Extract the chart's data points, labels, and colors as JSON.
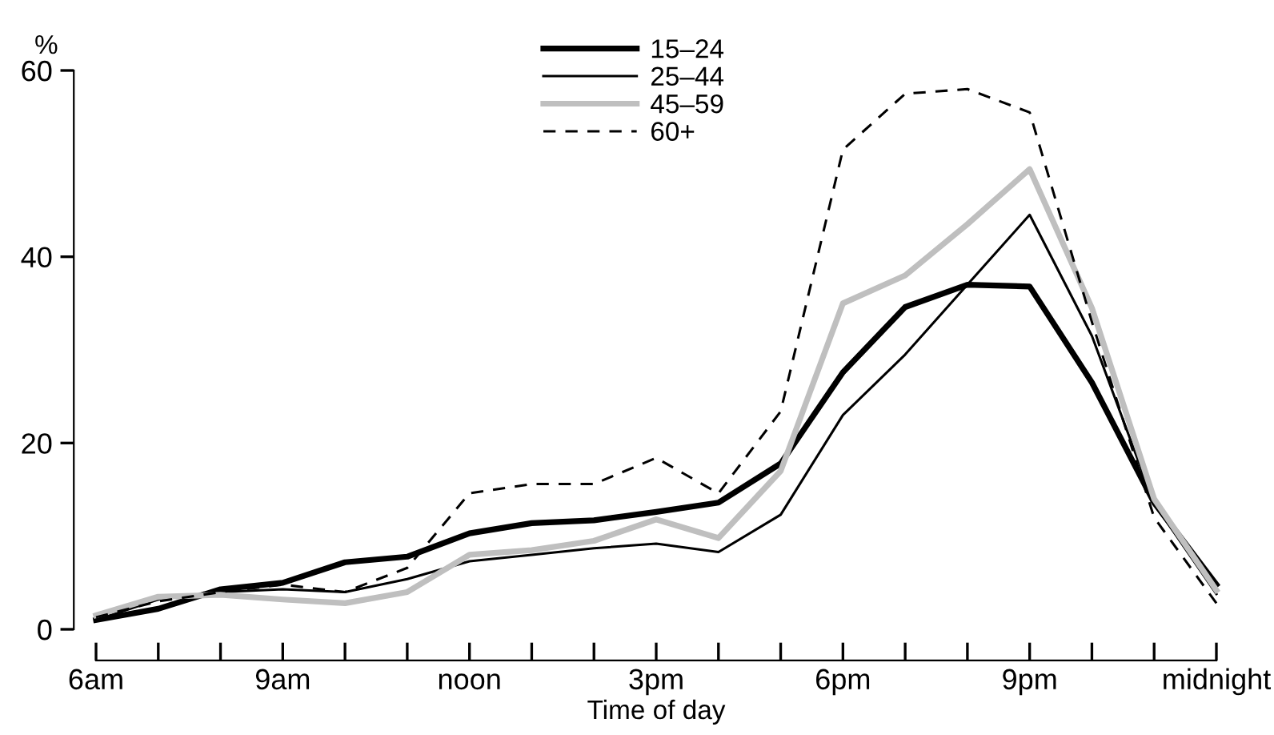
{
  "chart_data": {
    "type": "line",
    "ylabel": "%",
    "xlabel": "Time of day",
    "categories": [
      "6am",
      null,
      null,
      "9am",
      null,
      null,
      "noon",
      null,
      null,
      "3pm",
      null,
      null,
      "6pm",
      null,
      null,
      "9pm",
      null,
      null,
      "midnight"
    ],
    "series": [
      {
        "name": "15–24",
        "color": "#000000",
        "values": [
          1,
          2.2,
          4.3,
          5,
          7.2,
          7.8,
          10.3,
          11.4,
          11.7,
          12.6,
          13.6,
          17.8,
          27.6,
          34.6,
          37,
          36.8,
          26.5,
          13.6,
          4.8
        ]
      },
      {
        "name": "25–44",
        "color": "#000000",
        "values": [
          1,
          3.2,
          4,
          4.3,
          4,
          5.4,
          7.3,
          8,
          8.7,
          9.2,
          8.3,
          12.3,
          23,
          29.5,
          37,
          44.5,
          31.5,
          13.5,
          3.8
        ]
      },
      {
        "name": "45–59",
        "color": "#bfbfbf",
        "values": [
          1.5,
          3.5,
          3.7,
          3.2,
          2.8,
          4,
          8,
          8.5,
          9.5,
          11.8,
          9.8,
          17,
          35,
          38,
          43.5,
          49.4,
          34.5,
          14,
          4.2
        ]
      },
      {
        "name": "60+",
        "color": "#000000",
        "line_style": "dashed",
        "values": [
          1.3,
          3,
          4,
          4.8,
          4,
          6.6,
          14.6,
          15.6,
          15.6,
          18.4,
          14.6,
          23.4,
          51.5,
          57.5,
          58,
          55.5,
          33,
          12,
          2.8
        ]
      }
    ],
    "ylim": [
      0,
      60
    ],
    "yticks": [
      0,
      20,
      40,
      60
    ],
    "legend": "top",
    "grid": false,
    "marker": "none"
  }
}
